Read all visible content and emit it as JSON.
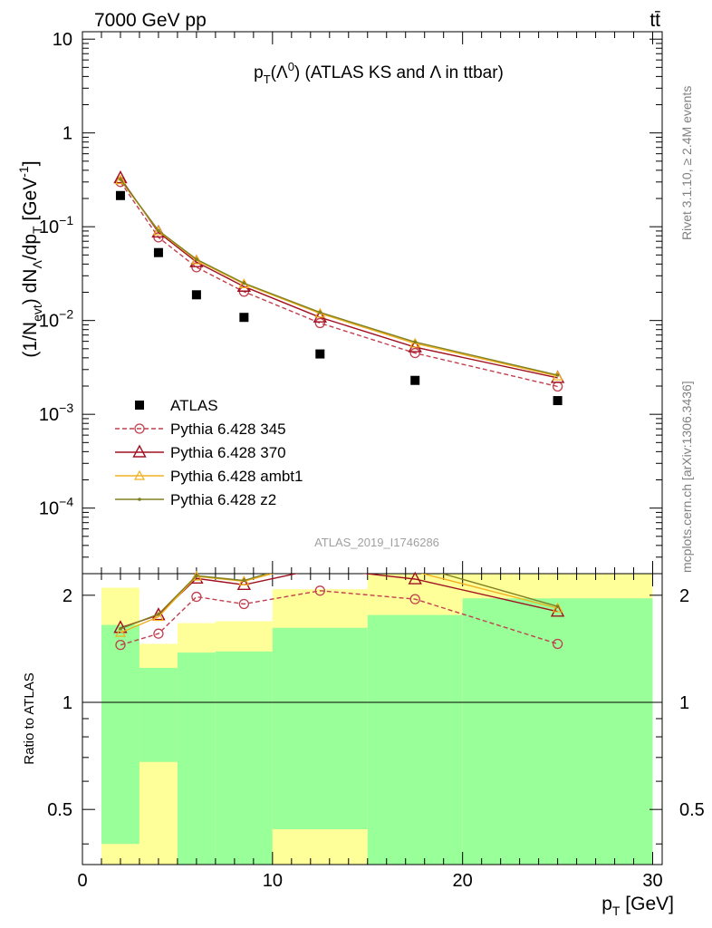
{
  "header": {
    "left": "7000 GeV pp",
    "right": "tt̄"
  },
  "side_labels": {
    "rivet": "Rivet 3.1.10, ≥ 2.4M events",
    "mcplots": "mcplots.cern.ch [arXiv:1306.3436]"
  },
  "chart_data": [
    {
      "panel": "main",
      "type": "scatter",
      "title": "p_T(Λ^0) (ATLAS KS and Λ in ttbar)",
      "title_parts": {
        "p": "p",
        "sub": "T",
        "open": "(Λ",
        "sup": "0",
        "rest": ") (ATLAS KS and Λ in ttbar)"
      },
      "ylabel": "(1/N_evt) dN_Λ/dp_T [GeV^-1]",
      "ylabel_parts": {
        "a": "(1/N",
        "a_sub": "evt",
        "b": ") dN",
        "b_sub": "Λ",
        "c": "/dp",
        "c_sub": "T",
        "d": " [GeV",
        "d_sup": "-1",
        "e": "]"
      },
      "y_scale": "log",
      "ylim": [
        2e-05,
        12
      ],
      "xlim": [
        0,
        30.5
      ],
      "y_ticks": [
        {
          "v": 10,
          "label": "10",
          "exp": ""
        },
        {
          "v": 1,
          "label": "1",
          "exp": ""
        },
        {
          "v": 0.1,
          "label": "10",
          "exp": "−1"
        },
        {
          "v": 0.01,
          "label": "10",
          "exp": "−2"
        },
        {
          "v": 0.001,
          "label": "10",
          "exp": "−3"
        },
        {
          "v": 0.0001,
          "label": "10",
          "exp": "−4"
        }
      ],
      "watermark": "ATLAS_2019_I1746286",
      "legend_position": "lower-left",
      "series": [
        {
          "name": "ATLAS",
          "style": "data",
          "color": "#000000",
          "x": [
            2,
            4,
            6,
            8.5,
            12.5,
            17.5,
            25
          ],
          "y": [
            0.215,
            0.053,
            0.0188,
            0.0108,
            0.0044,
            0.0023,
            0.0014
          ]
        },
        {
          "name": "Pythia 6.428 345",
          "style": "dashed-circle",
          "color": "#c0404f",
          "x": [
            2,
            4,
            6,
            8.5,
            12.5,
            17.5,
            25
          ],
          "y": [
            0.3,
            0.077,
            0.037,
            0.0203,
            0.0094,
            0.0045,
            0.00198
          ]
        },
        {
          "name": "Pythia 6.428 370",
          "style": "solid-triangle",
          "color": "#a01020",
          "x": [
            2,
            4,
            6,
            8.5,
            12.5,
            17.5,
            25
          ],
          "y": [
            0.33,
            0.087,
            0.042,
            0.023,
            0.0108,
            0.0052,
            0.00245
          ]
        },
        {
          "name": "Pythia 6.428 ambt1",
          "style": "solid-small-triangle",
          "color": "#f0b020",
          "x": [
            2,
            4,
            6,
            8.5,
            12.5,
            17.5,
            25
          ],
          "y": [
            0.315,
            0.09,
            0.044,
            0.0245,
            0.0119,
            0.0057,
            0.00255
          ]
        },
        {
          "name": "Pythia 6.428 z2",
          "style": "solid-dot",
          "color": "#808020",
          "x": [
            2,
            4,
            6,
            8.5,
            12.5,
            17.5,
            25
          ],
          "y": [
            0.32,
            0.091,
            0.045,
            0.025,
            0.0122,
            0.0059,
            0.00262
          ]
        }
      ]
    },
    {
      "panel": "ratio",
      "type": "line",
      "ylabel": "Ratio to ATLAS",
      "xlabel": "p_T [GeV]",
      "xlabel_parts": {
        "p": "p",
        "sub": "T",
        "rest": " [GeV]"
      },
      "y_scale": "log",
      "ylim": [
        0.35,
        2.3
      ],
      "xlim": [
        0,
        30.5
      ],
      "y_ticks": [
        0.5,
        1,
        2
      ],
      "x_ticks": [
        0,
        10,
        20,
        30
      ],
      "bins": [
        {
          "lo": 1,
          "hi": 3,
          "green": [
            0.4,
            1.65
          ],
          "yellow": [
            0.35,
            2.1
          ]
        },
        {
          "lo": 3,
          "hi": 5,
          "green": [
            0.68,
            1.25
          ],
          "yellow": [
            0.35,
            1.46
          ]
        },
        {
          "lo": 5,
          "hi": 7,
          "green": [
            0.35,
            1.38
          ],
          "yellow": [
            0.35,
            1.67
          ]
        },
        {
          "lo": 7,
          "hi": 10,
          "green": [
            0.35,
            1.39
          ],
          "yellow": [
            0.35,
            1.69
          ]
        },
        {
          "lo": 10,
          "hi": 15,
          "green": [
            0.44,
            1.62
          ],
          "yellow": [
            0.35,
            2.08
          ]
        },
        {
          "lo": 15,
          "hi": 20,
          "green": [
            0.35,
            1.76
          ],
          "yellow": [
            0.35,
            2.3
          ]
        },
        {
          "lo": 20,
          "hi": 30,
          "green": [
            0.35,
            1.96
          ],
          "yellow": [
            0.35,
            2.3
          ]
        }
      ],
      "series": [
        {
          "name": "Pythia 6.428 345",
          "style": "dashed-circle",
          "color": "#c0404f",
          "x": [
            2,
            4,
            6,
            8.5,
            12.5,
            17.5,
            25
          ],
          "y": [
            1.45,
            1.56,
            1.98,
            1.89,
            2.06,
            1.95,
            1.46
          ]
        },
        {
          "name": "Pythia 6.428 370",
          "style": "solid-triangle",
          "color": "#a01020",
          "x": [
            2,
            4,
            6,
            8.5,
            12.5,
            17.5,
            25
          ],
          "y": [
            1.62,
            1.76,
            2.23,
            2.14,
            2.38,
            2.22,
            1.8
          ]
        },
        {
          "name": "Pythia 6.428 ambt1",
          "style": "solid-small-triangle",
          "color": "#f0b020",
          "x": [
            2,
            4,
            6,
            8.5,
            12.5,
            17.5,
            25
          ],
          "y": [
            1.57,
            1.74,
            2.26,
            2.19,
            2.5,
            2.33,
            1.84
          ]
        },
        {
          "name": "Pythia 6.428 z2",
          "style": "solid-dot",
          "color": "#808020",
          "x": [
            2,
            4,
            6,
            8.5,
            12.5,
            17.5,
            25
          ],
          "y": [
            1.61,
            1.77,
            2.27,
            2.2,
            2.55,
            2.42,
            1.86
          ]
        }
      ]
    }
  ]
}
